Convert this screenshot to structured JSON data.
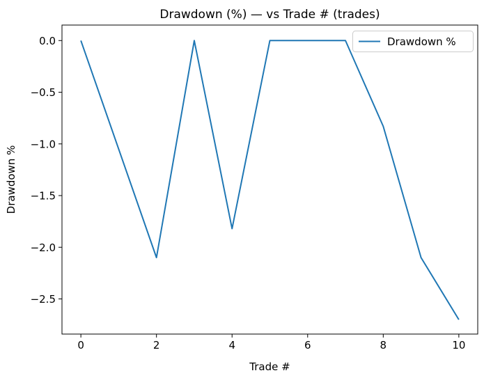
{
  "figure": {
    "background": "#ffffff",
    "spine_color": "#000000",
    "text_color": "#000000"
  },
  "chart_data": {
    "type": "line",
    "title": "Drawdown (%) — vs Trade # (trades)",
    "xlabel": "Trade #",
    "ylabel": "Drawdown %",
    "x": [
      0,
      1,
      2,
      3,
      4,
      5,
      6,
      7,
      8,
      9,
      10
    ],
    "series": [
      {
        "name": "Drawdown %",
        "color": "#1f77b4",
        "values": [
          0.0,
          -1.05,
          -2.1,
          0.0,
          -1.82,
          0.0,
          0.0,
          0.0,
          -0.83,
          -2.1,
          -2.7
        ]
      }
    ],
    "xlim": [
      -0.5,
      10.5
    ],
    "ylim": [
      -2.84,
      0.15
    ],
    "xtick_values": [
      0,
      2,
      4,
      6,
      8,
      10
    ],
    "xtick_labels": [
      "0",
      "2",
      "4",
      "6",
      "8",
      "10"
    ],
    "ytick_values": [
      0,
      -0.5,
      -1,
      -1.5,
      -2,
      -2.5
    ],
    "ytick_labels": [
      "0.0",
      "−0.5",
      "−1.0",
      "−1.5",
      "−2.0",
      "−2.5"
    ],
    "legend": {
      "position": "upper right",
      "entries": [
        "Drawdown %"
      ]
    },
    "grid": false
  }
}
